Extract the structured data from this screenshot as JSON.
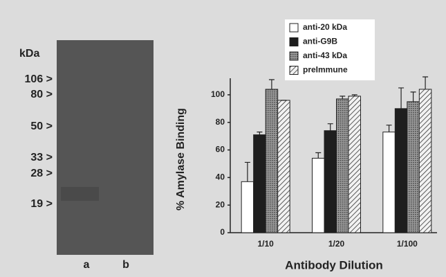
{
  "gel": {
    "unit_label": "kDa",
    "markers": [
      "106 >",
      "80 >",
      "50 >",
      "33 >",
      "28 >",
      "19 >"
    ],
    "lanes": [
      "a",
      "b"
    ]
  },
  "chart_data": {
    "type": "bar",
    "y_label": "% Amylase Binding",
    "x_label": "Antibody Dilution",
    "categories": [
      "1/10",
      "1/20",
      "1/100"
    ],
    "series": [
      {
        "name": "anti-20 kDa",
        "color": "#ffffff",
        "values": [
          37,
          54,
          73
        ],
        "errors": [
          14,
          4,
          5
        ]
      },
      {
        "name": "anti-G9B",
        "color": "#1e1e1e",
        "values": [
          71,
          74,
          90
        ],
        "errors": [
          2,
          5,
          15
        ]
      },
      {
        "name": "anti-43 kDa",
        "color": "#8a8a8a",
        "pattern": "dots",
        "values": [
          104,
          97,
          95
        ],
        "errors": [
          7,
          2,
          7
        ]
      },
      {
        "name": "preImmune",
        "color": "#f0f0f0",
        "pattern": "hatch",
        "values": [
          96,
          99,
          104
        ],
        "errors": [
          0,
          1,
          9
        ]
      }
    ],
    "ylim": [
      0,
      112
    ],
    "yticks": [
      0,
      20,
      40,
      60,
      80,
      100
    ],
    "legend": "top-right"
  }
}
